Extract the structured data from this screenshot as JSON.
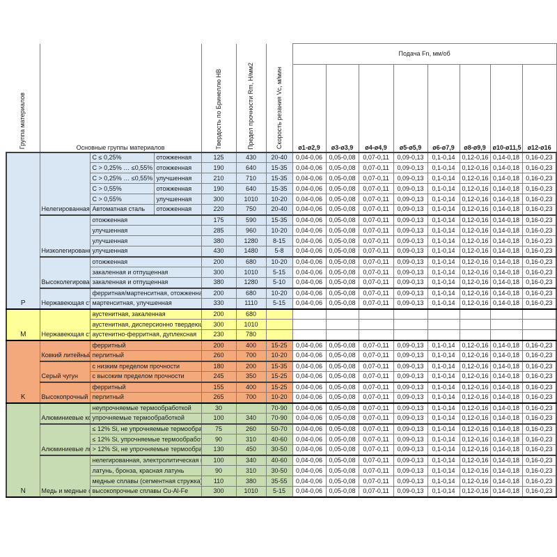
{
  "header": {
    "col_group": "Группа материалов",
    "col_main": "Основные группы материалов",
    "col_hb": "Твердость по Бринеллю HB",
    "col_rm": "Предел прочности Rm, Н/мм2",
    "col_vc": "Скорость резания Vc, м/мин",
    "feed_title": "Подача Fn, мм/об",
    "diameters": [
      "ø1-ø2,9",
      "ø3-ø3,9",
      "ø4-ø4,9",
      "ø5-ø5,9",
      "ø6-ø7,9",
      "ø8-ø9,9",
      "ø10-ø11,5",
      "ø12-ø16"
    ]
  },
  "feed_values": [
    "0,04-0,06",
    "0,05-0,08",
    "0,07-0,11",
    "0,09-0,13",
    "0,1-0,14",
    "0,12-0,16",
    "0,14-0,18",
    "0,16-0,23"
  ],
  "sections": [
    {
      "letter": "P",
      "color": "#d9e7f5",
      "groups": [
        {
          "name": "Нелегированная сталь",
          "rows": [
            {
              "sub": "C ≤ 0,25%",
              "state": "отожженная",
              "hb": "125",
              "rm": "430",
              "vc": "20-40"
            },
            {
              "sub": "C > 0,25% … ≤0,55%",
              "state": "отожженная",
              "hb": "190",
              "rm": "640",
              "vc": "15-35"
            },
            {
              "sub": "C > 0,25% … ≤0,55%",
              "state": "улучшенная",
              "hb": "210",
              "rm": "710",
              "vc": "15-35"
            },
            {
              "sub": "C > 0,55%",
              "state": "отожженная",
              "hb": "190",
              "rm": "640",
              "vc": "15-35"
            },
            {
              "sub": "C > 0,55%",
              "state": "улучшенная",
              "hb": "300",
              "rm": "1010",
              "vc": "10-20"
            },
            {
              "sub": "Автоматная сталь",
              "state": "отожженная",
              "hb": "220",
              "rm": "750",
              "vc": "20-40"
            }
          ]
        },
        {
          "name": "Низколегированная сталь",
          "rows": [
            {
              "sub": "отожженная",
              "hb": "175",
              "rm": "590",
              "vc": "15-35"
            },
            {
              "sub": "улучшенная",
              "hb": "285",
              "rm": "960",
              "vc": "10-20"
            },
            {
              "sub": "улучшенная",
              "hb": "380",
              "rm": "1280",
              "vc": "8-15"
            },
            {
              "sub": "улучшенная",
              "hb": "430",
              "rm": "1480",
              "vc": "5-8"
            }
          ]
        },
        {
          "name": "Высоколегированная сталь",
          "rows": [
            {
              "sub": "отожженная",
              "hb": "200",
              "rm": "680",
              "vc": "10-20"
            },
            {
              "sub": "закаленная и отпущенная",
              "hb": "300",
              "rm": "1010",
              "vc": "5-15"
            },
            {
              "sub": "закаленная и отпущенная",
              "hb": "380",
              "rm": "1280",
              "vc": "5-10"
            }
          ]
        },
        {
          "name": "Нержавеющая сталь",
          "rows": [
            {
              "sub": "ферритная/мартенситная, отожженная",
              "hb": "200",
              "rm": "680",
              "vc": "10-20"
            },
            {
              "sub": "мартенситная, улучшенная",
              "hb": "330",
              "rm": "1110",
              "vc": "5-15"
            }
          ]
        }
      ]
    },
    {
      "letter": "M",
      "color": "#ffff99",
      "groups": [
        {
          "name": "Нержавеющая сталь",
          "rows": [
            {
              "sub": "аустенитная, закаленная",
              "hb": "200",
              "rm": "680",
              "vc": "",
              "feeds": false
            },
            {
              "sub": "аустенитная, дисперсионно твердеющая",
              "hb": "300",
              "rm": "1010",
              "vc": "",
              "feeds": false
            },
            {
              "sub": "аустенитно-ферритная, дуплексная",
              "hb": "230",
              "rm": "780",
              "vc": "",
              "feeds": false
            }
          ]
        }
      ]
    },
    {
      "letter": "K",
      "color": "#f4a97c",
      "groups": [
        {
          "name": "Ковкий литейный чугун",
          "rows": [
            {
              "sub": "ферритный",
              "hb": "200",
              "rm": "400",
              "vc": "15-25"
            },
            {
              "sub": "перлитный",
              "hb": "260",
              "rm": "700",
              "vc": "10-20"
            }
          ]
        },
        {
          "name": "Серый чугун",
          "rows": [
            {
              "sub": "с низким пределом прочности",
              "hb": "180",
              "rm": "200",
              "vc": "15-35"
            },
            {
              "sub": "с высоким пределом прочности",
              "hb": "245",
              "rm": "350",
              "vc": "15-25"
            }
          ]
        },
        {
          "name": "Высокопрочный чугун",
          "rows": [
            {
              "sub": "ферритный",
              "hb": "155",
              "rm": "400",
              "vc": "15-25"
            },
            {
              "sub": "перлитный",
              "hb": "265",
              "rm": "700",
              "vc": "10-20"
            }
          ]
        }
      ]
    },
    {
      "letter": "N",
      "color": "#c8dcb4",
      "groups": [
        {
          "name": "Алюминиевые кованые сплавы",
          "rows": [
            {
              "sub": "неупрочняемые термообработкой",
              "hb": "30",
              "rm": "",
              "vc": "70-90"
            },
            {
              "sub": "упрочняемые термообработкой",
              "hb": "100",
              "rm": "340",
              "vc": "70-90"
            }
          ]
        },
        {
          "name": "Алюминиевые литейные сплавы",
          "rows": [
            {
              "sub": "≤ 12% Si, не упрочняемые термообработкой",
              "hb": "75",
              "rm": "260",
              "vc": "50-70"
            },
            {
              "sub": "≤ 12% Si, упрочняемые термообработкой",
              "hb": "90",
              "rm": "310",
              "vc": "40-60"
            },
            {
              "sub": "> 12% Si, не упрочняемые термообработкой",
              "hb": "130",
              "rm": "450",
              "vc": "30-50"
            }
          ]
        },
        {
          "name": "Медь и медные сплавы",
          "rows": [
            {
              "sub": "нелегированная, электролитическая медь",
              "hb": "100",
              "rm": "340",
              "vc": "40-60"
            },
            {
              "sub": "латунь, бронза, красная латунь",
              "hb": "90",
              "rm": "310",
              "vc": "30-50"
            },
            {
              "sub": "медные сплавы (сегментная стружка)",
              "hb": "110",
              "rm": "380",
              "vc": "35-55"
            },
            {
              "sub": "высокопрочные сплавы Cu-Al-Fe",
              "hb": "300",
              "rm": "1010",
              "vc": "5-15"
            }
          ]
        }
      ]
    }
  ]
}
